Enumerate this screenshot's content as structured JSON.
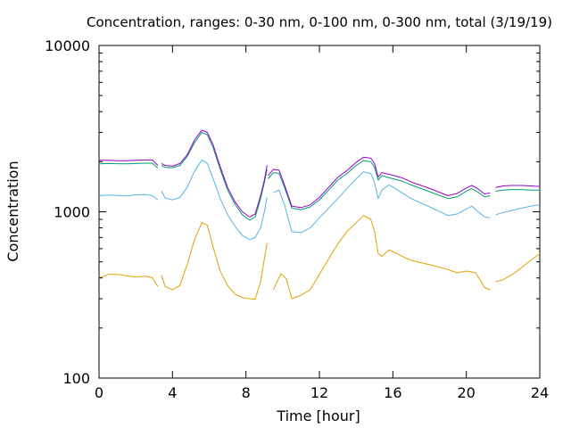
{
  "chart_data": {
    "type": "line",
    "title": "Concentration, ranges: 0-30 nm, 0-100 nm, 0-300 nm, total (3/19/19)",
    "xlabel": "Time [hour]",
    "ylabel": "Concentration",
    "xlim": [
      0,
      24
    ],
    "ylim": [
      100,
      10000
    ],
    "yscale": "log",
    "x_ticks": [
      "0",
      "4",
      "8",
      "12",
      "16",
      "20",
      "24"
    ],
    "y_ticks": [
      "100",
      "1000",
      "10000"
    ],
    "grid": false,
    "legend": "none",
    "series": [
      {
        "color": "#e69f00",
        "segments": [
          [
            [
              0,
              400
            ],
            [
              0.5,
              420
            ],
            [
              1.0,
              420
            ],
            [
              1.5,
              412
            ],
            [
              2.0,
              405
            ],
            [
              2.5,
              410
            ],
            [
              2.9,
              402
            ],
            [
              3.2,
              355
            ]
          ],
          [
            [
              3.4,
              415
            ],
            [
              3.6,
              355
            ],
            [
              4.0,
              340
            ],
            [
              4.4,
              360
            ],
            [
              4.8,
              480
            ],
            [
              5.2,
              680
            ],
            [
              5.6,
              860
            ],
            [
              5.9,
              830
            ],
            [
              6.2,
              620
            ],
            [
              6.6,
              440
            ],
            [
              7.0,
              360
            ],
            [
              7.4,
              320
            ],
            [
              7.8,
              305
            ],
            [
              8.2,
              300
            ],
            [
              8.5,
              298
            ],
            [
              8.8,
              380
            ],
            [
              9.0,
              520
            ],
            [
              9.15,
              650
            ]
          ],
          [
            [
              9.5,
              340
            ],
            [
              9.9,
              425
            ],
            [
              10.2,
              395
            ],
            [
              10.5,
              300
            ],
            [
              11.0,
              315
            ],
            [
              11.5,
              340
            ],
            [
              12.0,
              420
            ],
            [
              12.5,
              520
            ],
            [
              13.0,
              640
            ],
            [
              13.5,
              760
            ],
            [
              14.0,
              860
            ],
            [
              14.4,
              950
            ],
            [
              14.8,
              900
            ],
            [
              15.0,
              760
            ],
            [
              15.2,
              560
            ],
            [
              15.4,
              540
            ],
            [
              15.8,
              590
            ],
            [
              16.5,
              540
            ],
            [
              17.0,
              510
            ],
            [
              18.0,
              480
            ],
            [
              19.0,
              450
            ],
            [
              19.5,
              430
            ],
            [
              20.0,
              440
            ],
            [
              20.5,
              430
            ],
            [
              21.0,
              350
            ],
            [
              21.3,
              340
            ]
          ],
          [
            [
              21.6,
              380
            ],
            [
              22.0,
              390
            ],
            [
              22.5,
              420
            ],
            [
              23.0,
              460
            ],
            [
              23.5,
              510
            ],
            [
              24.0,
              560
            ]
          ]
        ]
      },
      {
        "color": "#56b4e9",
        "segments": [
          [
            [
              0,
              1250
            ],
            [
              0.5,
              1260
            ],
            [
              1.0,
              1255
            ],
            [
              1.5,
              1245
            ],
            [
              2.0,
              1265
            ],
            [
              2.5,
              1270
            ],
            [
              2.9,
              1250
            ],
            [
              3.2,
              1180
            ]
          ],
          [
            [
              3.4,
              1330
            ],
            [
              3.6,
              1210
            ],
            [
              4.0,
              1180
            ],
            [
              4.4,
              1220
            ],
            [
              4.8,
              1400
            ],
            [
              5.2,
              1750
            ],
            [
              5.6,
              2050
            ],
            [
              5.9,
              1950
            ],
            [
              6.2,
              1600
            ],
            [
              6.6,
              1200
            ],
            [
              7.0,
              960
            ],
            [
              7.4,
              820
            ],
            [
              7.8,
              720
            ],
            [
              8.2,
              680
            ],
            [
              8.5,
              700
            ],
            [
              8.8,
              800
            ],
            [
              9.0,
              1000
            ],
            [
              9.15,
              1220
            ]
          ],
          [
            [
              9.5,
              1300
            ],
            [
              9.8,
              1350
            ],
            [
              10.1,
              1100
            ],
            [
              10.5,
              760
            ],
            [
              11.0,
              750
            ],
            [
              11.5,
              800
            ],
            [
              12.0,
              920
            ],
            [
              12.5,
              1050
            ],
            [
              13.0,
              1200
            ],
            [
              13.5,
              1380
            ],
            [
              14.0,
              1580
            ],
            [
              14.4,
              1740
            ],
            [
              14.8,
              1700
            ],
            [
              15.0,
              1500
            ],
            [
              15.2,
              1200
            ],
            [
              15.4,
              1350
            ],
            [
              15.8,
              1450
            ],
            [
              16.5,
              1300
            ],
            [
              17.0,
              1200
            ],
            [
              18.0,
              1070
            ],
            [
              19.0,
              950
            ],
            [
              19.5,
              970
            ],
            [
              20.0,
              1040
            ],
            [
              20.3,
              1080
            ],
            [
              20.6,
              1010
            ],
            [
              21.0,
              930
            ],
            [
              21.3,
              920
            ]
          ],
          [
            [
              21.6,
              960
            ],
            [
              22.0,
              990
            ],
            [
              22.5,
              1020
            ],
            [
              23.0,
              1050
            ],
            [
              23.5,
              1080
            ],
            [
              24.0,
              1100
            ]
          ]
        ]
      },
      {
        "color": "#009e73",
        "segments": [
          [
            [
              0,
              1940
            ],
            [
              0.5,
              1950
            ],
            [
              1.0,
              1945
            ],
            [
              1.5,
              1940
            ],
            [
              2.0,
              1950
            ],
            [
              2.5,
              1960
            ],
            [
              2.9,
              1960
            ],
            [
              3.2,
              1830
            ]
          ],
          [
            [
              3.4,
              1900
            ],
            [
              3.6,
              1850
            ],
            [
              4.0,
              1840
            ],
            [
              4.4,
              1900
            ],
            [
              4.8,
              2150
            ],
            [
              5.2,
              2600
            ],
            [
              5.6,
              3000
            ],
            [
              5.9,
              2900
            ],
            [
              6.2,
              2450
            ],
            [
              6.6,
              1800
            ],
            [
              7.0,
              1350
            ],
            [
              7.4,
              1110
            ],
            [
              7.8,
              960
            ],
            [
              8.2,
              890
            ],
            [
              8.5,
              930
            ],
            [
              8.8,
              1200
            ],
            [
              9.0,
              1500
            ],
            [
              9.15,
              1800
            ]
          ],
          [
            [
              9.2,
              1580
            ],
            [
              9.5,
              1720
            ],
            [
              9.8,
              1700
            ],
            [
              10.1,
              1400
            ],
            [
              10.5,
              1050
            ],
            [
              11.0,
              1030
            ],
            [
              11.5,
              1070
            ],
            [
              12.0,
              1180
            ],
            [
              12.5,
              1350
            ],
            [
              13.0,
              1550
            ],
            [
              13.5,
              1700
            ],
            [
              14.0,
              1900
            ],
            [
              14.4,
              2030
            ],
            [
              14.8,
              2000
            ],
            [
              15.0,
              1850
            ],
            [
              15.2,
              1550
            ],
            [
              15.4,
              1650
            ],
            [
              15.8,
              1600
            ],
            [
              16.5,
              1530
            ],
            [
              17.0,
              1450
            ],
            [
              18.0,
              1320
            ],
            [
              19.0,
              1200
            ],
            [
              19.5,
              1230
            ],
            [
              20.0,
              1330
            ],
            [
              20.3,
              1380
            ],
            [
              20.6,
              1320
            ],
            [
              21.0,
              1230
            ],
            [
              21.3,
              1250
            ]
          ],
          [
            [
              21.6,
              1330
            ],
            [
              22.0,
              1350
            ],
            [
              22.5,
              1360
            ],
            [
              23.0,
              1360
            ],
            [
              23.5,
              1350
            ],
            [
              24.0,
              1350
            ]
          ]
        ]
      },
      {
        "color": "#9400d3",
        "segments": [
          [
            [
              0,
              2040
            ],
            [
              0.5,
              2040
            ],
            [
              1.0,
              2030
            ],
            [
              1.5,
              2030
            ],
            [
              2.0,
              2040
            ],
            [
              2.5,
              2050
            ],
            [
              2.9,
              2050
            ],
            [
              3.2,
              1900
            ]
          ],
          [
            [
              3.4,
              1950
            ],
            [
              3.6,
              1900
            ],
            [
              4.0,
              1880
            ],
            [
              4.4,
              1950
            ],
            [
              4.8,
              2200
            ],
            [
              5.2,
              2700
            ],
            [
              5.6,
              3100
            ],
            [
              5.9,
              3000
            ],
            [
              6.2,
              2550
            ],
            [
              6.6,
              1870
            ],
            [
              7.0,
              1400
            ],
            [
              7.4,
              1150
            ],
            [
              7.8,
              1000
            ],
            [
              8.2,
              930
            ],
            [
              8.5,
              970
            ],
            [
              8.8,
              1250
            ],
            [
              9.0,
              1550
            ],
            [
              9.15,
              1900
            ]
          ],
          [
            [
              9.2,
              1650
            ],
            [
              9.5,
              1800
            ],
            [
              9.8,
              1780
            ],
            [
              10.1,
              1450
            ],
            [
              10.5,
              1080
            ],
            [
              11.0,
              1060
            ],
            [
              11.5,
              1100
            ],
            [
              12.0,
              1220
            ],
            [
              12.5,
              1400
            ],
            [
              13.0,
              1610
            ],
            [
              13.5,
              1770
            ],
            [
              14.0,
              1980
            ],
            [
              14.4,
              2130
            ],
            [
              14.8,
              2100
            ],
            [
              15.0,
              1950
            ],
            [
              15.2,
              1620
            ],
            [
              15.4,
              1720
            ],
            [
              15.8,
              1680
            ],
            [
              16.5,
              1600
            ],
            [
              17.0,
              1510
            ],
            [
              18.0,
              1380
            ],
            [
              19.0,
              1250
            ],
            [
              19.5,
              1290
            ],
            [
              20.0,
              1390
            ],
            [
              20.3,
              1440
            ],
            [
              20.6,
              1380
            ],
            [
              21.0,
              1280
            ],
            [
              21.3,
              1300
            ]
          ],
          [
            [
              21.6,
              1400
            ],
            [
              22.0,
              1430
            ],
            [
              22.5,
              1440
            ],
            [
              23.0,
              1440
            ],
            [
              23.5,
              1430
            ],
            [
              24.0,
              1420
            ]
          ]
        ]
      }
    ]
  }
}
